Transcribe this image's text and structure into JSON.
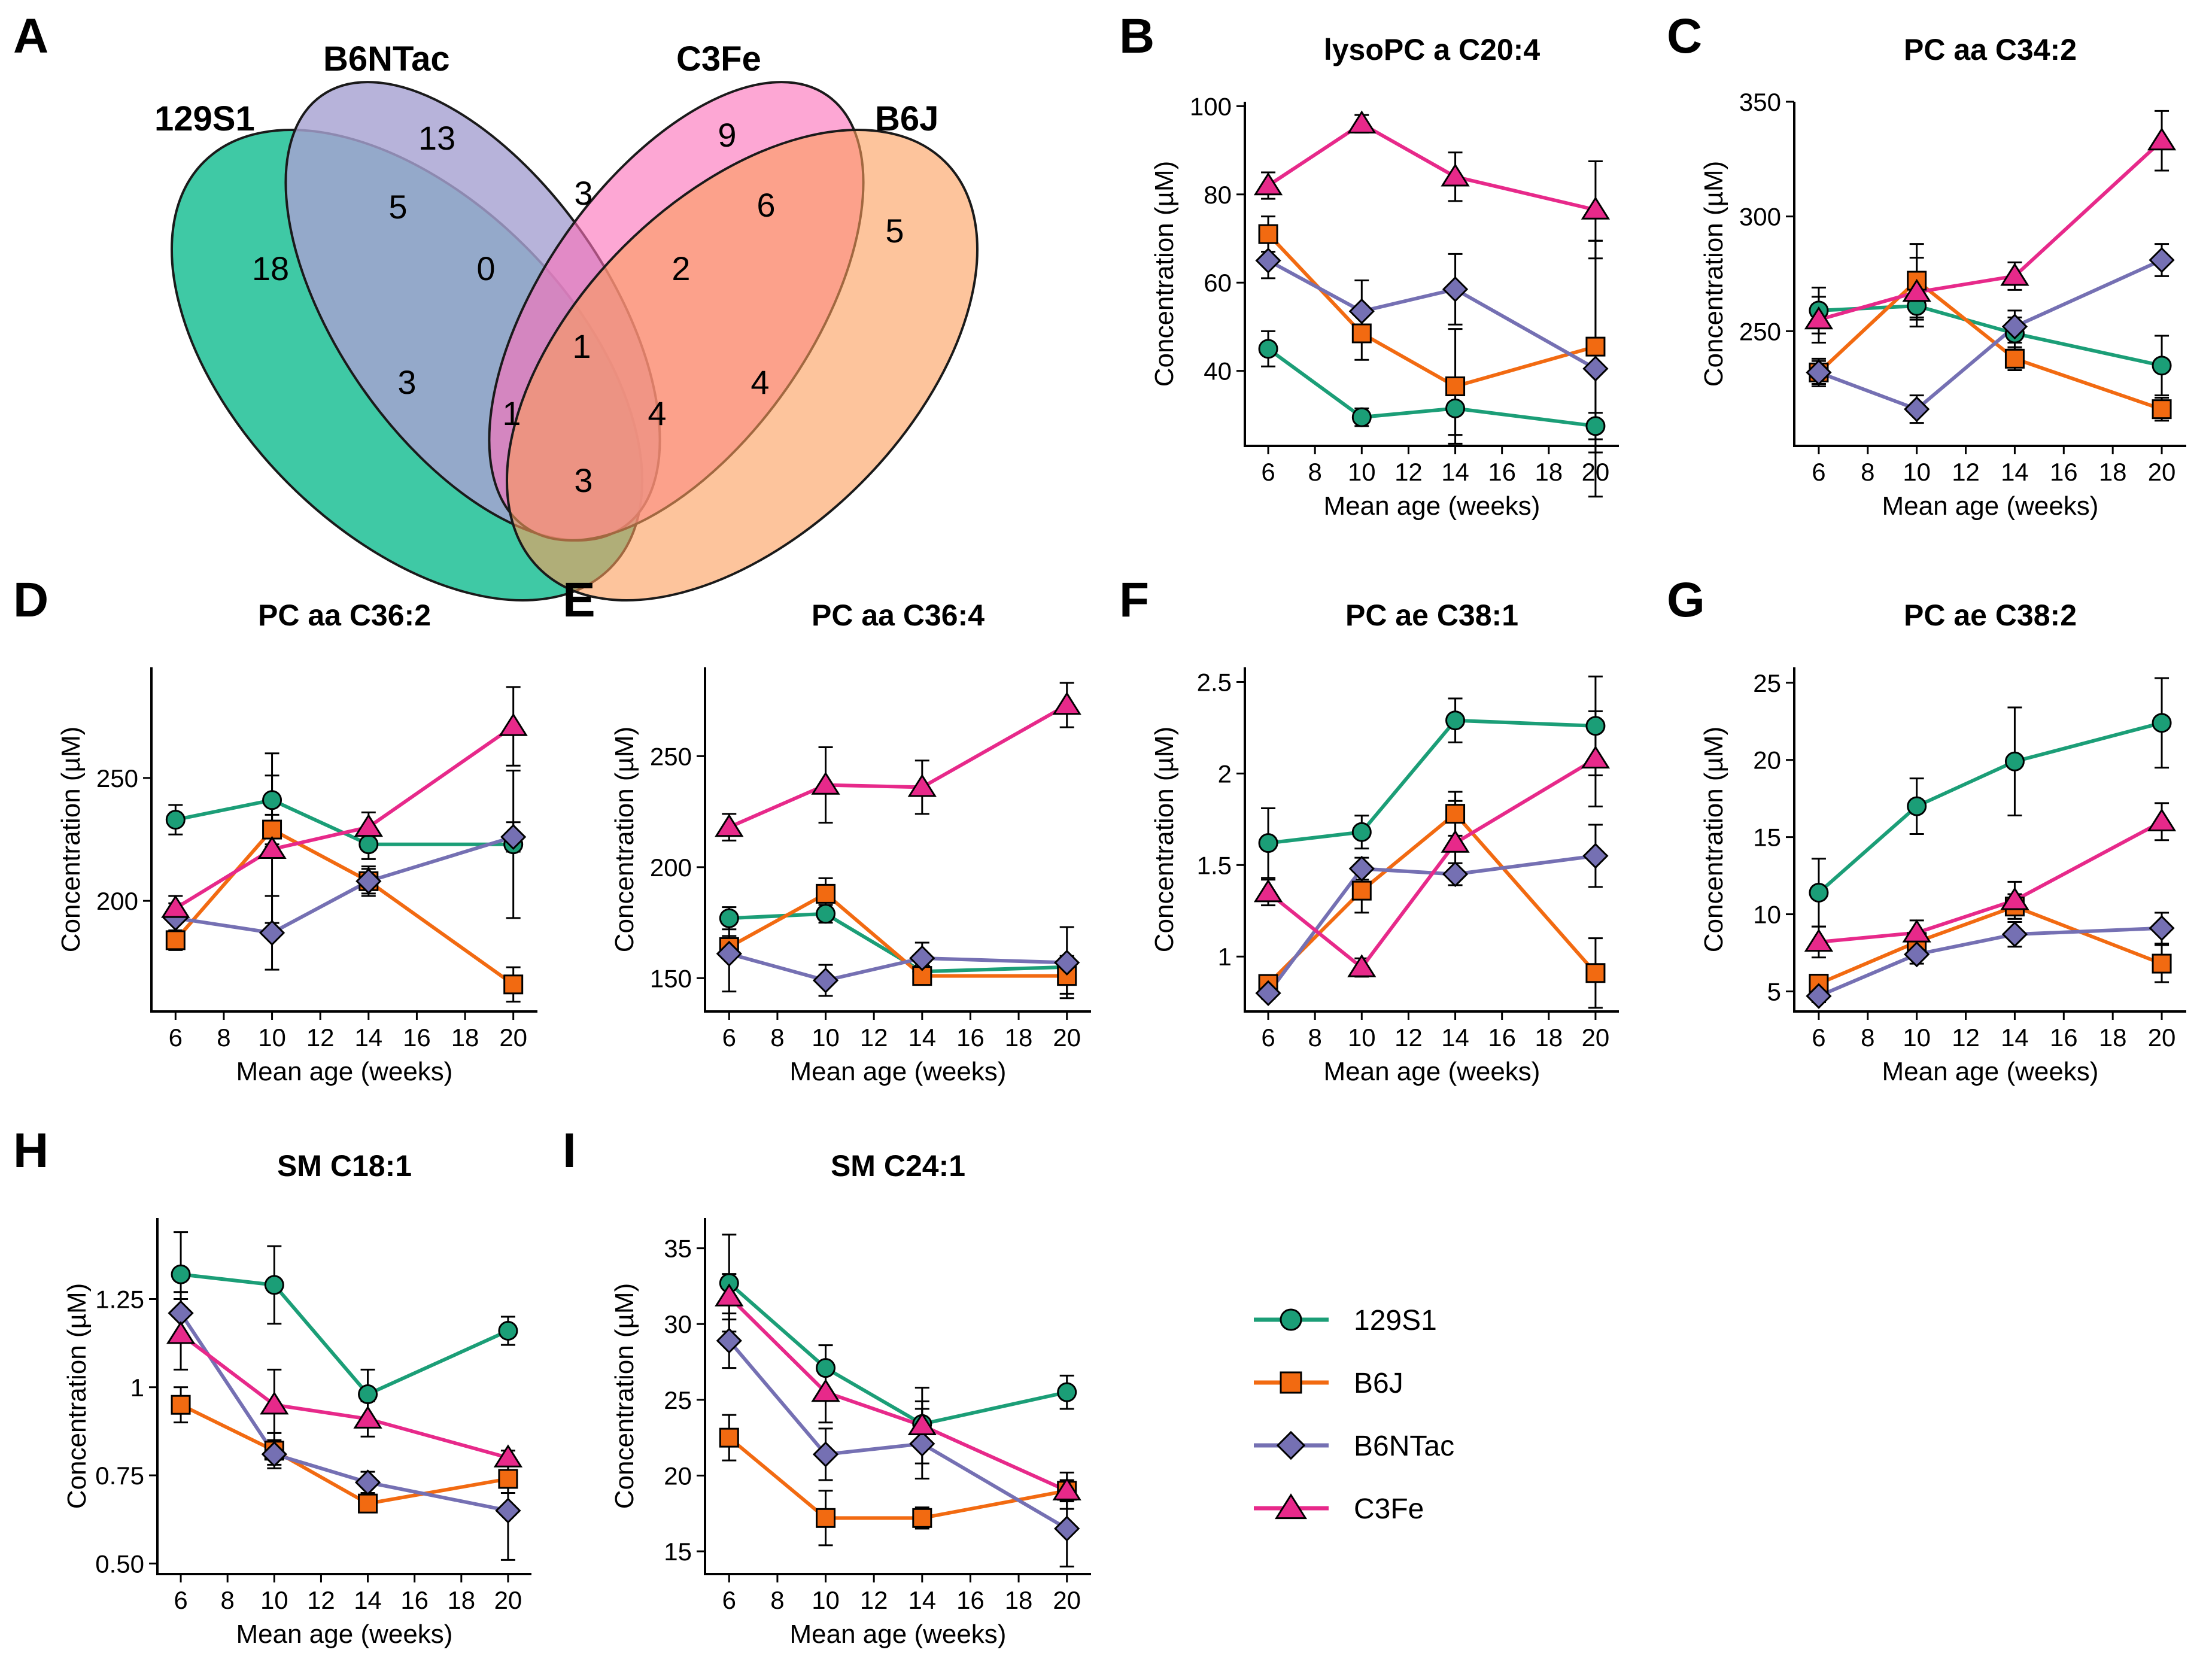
{
  "figure": {
    "panel_labels": [
      "A",
      "B",
      "C",
      "D",
      "E",
      "F",
      "G",
      "H",
      "I"
    ],
    "strain_colors": {
      "129S1": "#1b9e77",
      "B6J": "#f26a11",
      "B6NTac": "#7570b3",
      "C3Fe": "#e7298a"
    },
    "legend": [
      {
        "name": "129S1",
        "color": "#1b9e77",
        "shape": "circle"
      },
      {
        "name": "B6J",
        "color": "#f26a11",
        "shape": "square"
      },
      {
        "name": "B6NTac",
        "color": "#7570b3",
        "shape": "diamond"
      },
      {
        "name": "C3Fe",
        "color": "#e7298a",
        "shape": "triangle"
      }
    ]
  },
  "venn": {
    "sets": [
      {
        "name": "129S1",
        "color": "#3fc9a5"
      },
      {
        "name": "B6NTac",
        "color": "#a7a2d2"
      },
      {
        "name": "C3Fe",
        "color": "#fc71b9"
      },
      {
        "name": "B6J",
        "color": "#fb9d5a"
      }
    ],
    "regions": [
      {
        "sets": [
          "129S1"
        ],
        "count": "18"
      },
      {
        "sets": [
          "B6NTac"
        ],
        "count": "13"
      },
      {
        "sets": [
          "C3Fe"
        ],
        "count": "9"
      },
      {
        "sets": [
          "B6J"
        ],
        "count": "5"
      },
      {
        "sets": [
          "129S1",
          "B6NTac"
        ],
        "count": "5"
      },
      {
        "sets": [
          "B6NTac",
          "C3Fe"
        ],
        "count": "3"
      },
      {
        "sets": [
          "C3Fe",
          "B6J"
        ],
        "count": "6"
      },
      {
        "sets": [
          "129S1",
          "B6NTac",
          "C3Fe"
        ],
        "count": "0"
      },
      {
        "sets": [
          "B6NTac",
          "C3Fe",
          "B6J"
        ],
        "count": "2"
      },
      {
        "sets": [
          "129S1",
          "B6NTac",
          "C3Fe",
          "B6J"
        ],
        "count": "1"
      },
      {
        "sets": [
          "129S1",
          "C3Fe"
        ],
        "count": "3"
      },
      {
        "sets": [
          "B6NTac",
          "B6J"
        ],
        "count": "4"
      },
      {
        "sets": [
          "129S1",
          "C3Fe",
          "B6J"
        ],
        "count": "1"
      },
      {
        "sets": [
          "129S1",
          "B6NTac",
          "B6J"
        ],
        "count": "4"
      },
      {
        "sets": [
          "129S1",
          "B6J"
        ],
        "count": "3"
      }
    ]
  },
  "chart_data": [
    {
      "panel": "B",
      "type": "line",
      "title": "lysoPC a C20:4",
      "xlabel": "Mean age (weeks)",
      "ylabel": "Concentration (µM)",
      "x": [
        6,
        10,
        14,
        20
      ],
      "xlim": [
        5,
        21
      ],
      "xticks": [
        6,
        8,
        10,
        12,
        14,
        16,
        18,
        20
      ],
      "ylim": [
        23,
        101
      ],
      "yticks": [
        40,
        60,
        80,
        100
      ],
      "series": [
        {
          "name": "129S1",
          "values": [
            45,
            29.5,
            31.5,
            27.5
          ],
          "err": [
            4,
            2,
            6,
            3
          ]
        },
        {
          "name": "B6J",
          "values": [
            71,
            48.5,
            36.5,
            45.5
          ],
          "err": [
            4,
            6,
            13,
            24
          ]
        },
        {
          "name": "B6NTac",
          "values": [
            65,
            53.5,
            58.5,
            40.5
          ],
          "err": [
            4,
            7,
            8,
            29
          ]
        },
        {
          "name": "C3Fe",
          "values": [
            82,
            96,
            84,
            76.5
          ],
          "err": [
            3,
            2,
            5.5,
            11
          ]
        }
      ]
    },
    {
      "panel": "C",
      "type": "line",
      "title": "PC aa C34:2",
      "xlabel": "Mean age (weeks)",
      "ylabel": "Concentration (µM)",
      "x": [
        6,
        10,
        14,
        20
      ],
      "xlim": [
        5,
        21
      ],
      "xticks": [
        6,
        8,
        10,
        12,
        14,
        16,
        18,
        20
      ],
      "ylim": [
        200,
        350
      ],
      "yticks": [
        250,
        300,
        350
      ],
      "series": [
        {
          "name": "129S1",
          "values": [
            259,
            261,
            249,
            235
          ],
          "err": [
            10,
            6,
            7,
            13
          ]
        },
        {
          "name": "B6J",
          "values": [
            232,
            272,
            238,
            216
          ],
          "err": [
            5,
            16,
            5,
            5
          ]
        },
        {
          "name": "B6NTac",
          "values": [
            232,
            216,
            252,
            281
          ],
          "err": [
            6,
            6,
            7,
            7
          ]
        },
        {
          "name": "C3Fe",
          "values": [
            255,
            267,
            274,
            333
          ],
          "err": [
            10,
            15,
            6,
            13
          ]
        }
      ]
    },
    {
      "panel": "D",
      "type": "line",
      "title": "PC aa C36:2",
      "xlabel": "Mean age (weeks)",
      "ylabel": "Concentration (µM)",
      "x": [
        6,
        10,
        14,
        20
      ],
      "xlim": [
        5,
        21
      ],
      "xticks": [
        6,
        8,
        10,
        12,
        14,
        16,
        18,
        20
      ],
      "ylim": [
        155,
        295
      ],
      "yticks": [
        200,
        250
      ],
      "series": [
        {
          "name": "129S1",
          "values": [
            233,
            241,
            223,
            223
          ],
          "err": [
            6,
            19,
            6,
            30
          ]
        },
        {
          "name": "B6J",
          "values": [
            184,
            229,
            208,
            166
          ],
          "err": [
            4,
            6,
            5,
            7
          ]
        },
        {
          "name": "B6NTac",
          "values": [
            193,
            187,
            208,
            226
          ],
          "err": [
            6,
            15,
            6,
            6
          ]
        },
        {
          "name": "C3Fe",
          "values": [
            197,
            221,
            230,
            271
          ],
          "err": [
            5,
            30,
            6,
            16
          ]
        }
      ]
    },
    {
      "panel": "E",
      "type": "line",
      "title": "PC aa C36:4",
      "xlabel": "Mean age (weeks)",
      "ylabel": "Concentration (µM)",
      "x": [
        6,
        10,
        14,
        20
      ],
      "xlim": [
        5,
        21
      ],
      "xticks": [
        6,
        8,
        10,
        12,
        14,
        16,
        18,
        20
      ],
      "ylim": [
        135,
        290
      ],
      "yticks": [
        150,
        200,
        250
      ],
      "series": [
        {
          "name": "129S1",
          "values": [
            177,
            179,
            153,
            155
          ],
          "err": [
            5,
            4,
            4,
            5
          ]
        },
        {
          "name": "B6J",
          "values": [
            164,
            188,
            151,
            151
          ],
          "err": [
            5,
            7,
            3,
            8
          ]
        },
        {
          "name": "B6NTac",
          "values": [
            161,
            149,
            159,
            157
          ],
          "err": [
            17,
            7,
            7,
            16
          ]
        },
        {
          "name": "C3Fe",
          "values": [
            218,
            237,
            236,
            273
          ],
          "err": [
            6,
            17,
            12,
            10
          ]
        }
      ]
    },
    {
      "panel": "F",
      "type": "line",
      "title": "PC ae C38:1",
      "xlabel": "Mean age (weeks)",
      "ylabel": "Concentration (µM)",
      "x": [
        6,
        10,
        14,
        20
      ],
      "xlim": [
        5,
        21
      ],
      "xticks": [
        6,
        8,
        10,
        12,
        14,
        16,
        18,
        20
      ],
      "ylim": [
        0.7,
        2.58
      ],
      "yticks": [
        1.0,
        1.5,
        2.0,
        2.5
      ],
      "series": [
        {
          "name": "129S1",
          "values": [
            1.62,
            1.68,
            2.29,
            2.26
          ],
          "err": [
            0.19,
            0.09,
            0.12,
            0.27
          ]
        },
        {
          "name": "B6J",
          "values": [
            0.85,
            1.36,
            1.78,
            0.91
          ],
          "err": [
            0.03,
            0.12,
            0.12,
            0.19
          ]
        },
        {
          "name": "B6NTac",
          "values": [
            0.8,
            1.48,
            1.45,
            1.55
          ],
          "err": [
            0.03,
            0.06,
            0.06,
            0.17
          ]
        },
        {
          "name": "C3Fe",
          "values": [
            1.35,
            0.94,
            1.62,
            2.08
          ],
          "err": [
            0.07,
            0.05,
            0.23,
            0.26
          ]
        }
      ]
    },
    {
      "panel": "G",
      "type": "line",
      "title": "PC ae C38:2",
      "xlabel": "Mean age (weeks)",
      "ylabel": "Concentration (µM)",
      "x": [
        6,
        10,
        14,
        20
      ],
      "xlim": [
        5,
        21
      ],
      "xticks": [
        6,
        8,
        10,
        12,
        14,
        16,
        18,
        20
      ],
      "ylim": [
        3.7,
        26
      ],
      "yticks": [
        5,
        10,
        15,
        20,
        25
      ],
      "series": [
        {
          "name": "129S1",
          "values": [
            11.4,
            17,
            19.9,
            22.4
          ],
          "err": [
            2.2,
            1.8,
            3.5,
            2.9
          ]
        },
        {
          "name": "B6J",
          "values": [
            5.5,
            8.2,
            10.5,
            6.8
          ],
          "err": [
            0.4,
            0.7,
            0.8,
            1.2
          ]
        },
        {
          "name": "B6NTac",
          "values": [
            4.7,
            7.4,
            8.7,
            9.1
          ],
          "err": [
            0.4,
            0.6,
            0.8,
            1
          ]
        },
        {
          "name": "C3Fe",
          "values": [
            8.2,
            8.8,
            10.9,
            16
          ],
          "err": [
            1,
            0.8,
            1.2,
            1.2
          ]
        }
      ]
    },
    {
      "panel": "H",
      "type": "line",
      "title": "SM C18:1",
      "xlabel": "Mean age (weeks)",
      "ylabel": "Concentration (µM)",
      "x": [
        6,
        10,
        14,
        20
      ],
      "xlim": [
        5,
        21
      ],
      "xticks": [
        6,
        8,
        10,
        12,
        14,
        16,
        18,
        20
      ],
      "ylim": [
        0.47,
        1.48
      ],
      "yticks": [
        0.5,
        0.75,
        1.0,
        1.25
      ],
      "series": [
        {
          "name": "129S1",
          "values": [
            1.32,
            1.29,
            0.98,
            1.16
          ],
          "err": [
            0.12,
            0.11,
            0.07,
            0.04
          ]
        },
        {
          "name": "B6J",
          "values": [
            0.95,
            0.82,
            0.67,
            0.74
          ],
          "err": [
            0.05,
            0.05,
            0.02,
            0.04
          ]
        },
        {
          "name": "B6NTac",
          "values": [
            1.21,
            0.81,
            0.73,
            0.65
          ],
          "err": [
            0.06,
            0.03,
            0.03,
            0.14
          ]
        },
        {
          "name": "C3Fe",
          "values": [
            1.15,
            0.95,
            0.91,
            0.8
          ],
          "err": [
            0.1,
            0.1,
            0.05,
            0.02
          ]
        }
      ]
    },
    {
      "panel": "I",
      "type": "line",
      "title": "SM C24:1",
      "xlabel": "Mean age (weeks)",
      "ylabel": "Concentration (µM)",
      "x": [
        6,
        10,
        14,
        20
      ],
      "xlim": [
        5,
        21
      ],
      "xticks": [
        6,
        8,
        10,
        12,
        14,
        16,
        18,
        20
      ],
      "ylim": [
        13.5,
        37
      ],
      "yticks": [
        15,
        20,
        25,
        30,
        35
      ],
      "series": [
        {
          "name": "129S1",
          "values": [
            32.7,
            27.1,
            23.4,
            25.5
          ],
          "err": [
            3.2,
            1.5,
            1.5,
            1.1
          ]
        },
        {
          "name": "B6J",
          "values": [
            22.5,
            17.2,
            17.2,
            19
          ],
          "err": [
            1.5,
            1.8,
            0.7,
            0.7
          ]
        },
        {
          "name": "B6NTac",
          "values": [
            28.9,
            21.4,
            22.1,
            16.5
          ],
          "err": [
            1.8,
            1.7,
            2.3,
            2.5
          ]
        },
        {
          "name": "C3Fe",
          "values": [
            31.8,
            25.5,
            23.3,
            19
          ],
          "err": [
            1.5,
            2,
            2.5,
            1.2
          ]
        }
      ]
    }
  ]
}
